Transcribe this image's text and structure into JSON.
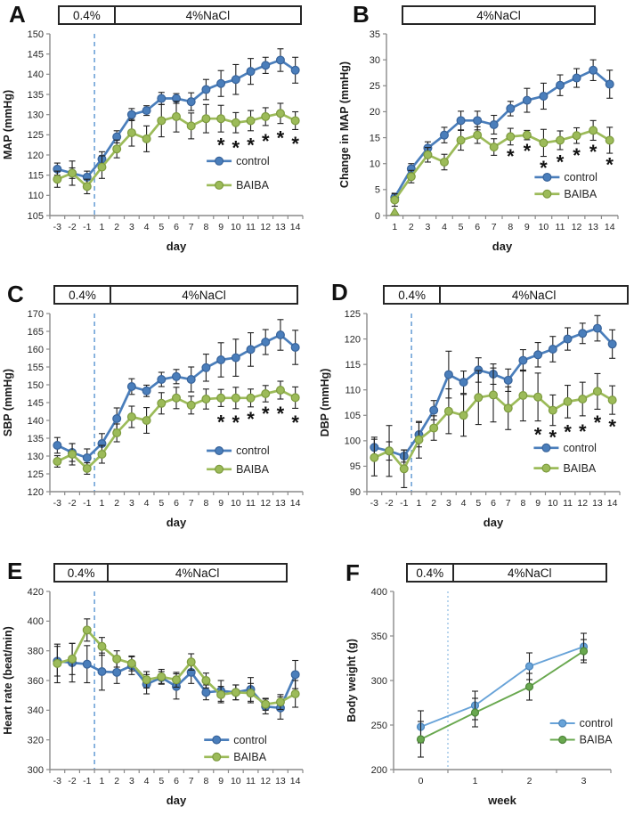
{
  "figure": {
    "groups": [
      "control",
      "BAIBA"
    ],
    "diet_phase_labels": {
      "baseline": "0.4%",
      "salt": "4%NaCl"
    }
  },
  "chart_data": [
    {
      "id": "A",
      "type": "line",
      "panel_label": "A",
      "header_boxes": [
        {
          "label": "0.4%"
        },
        {
          "label": "4%NaCl"
        }
      ],
      "xlabel": "day",
      "ylabel": "MAP (mmHg)",
      "ylim": [
        105,
        150
      ],
      "ytick_step": 5,
      "grid": false,
      "legend_position": "inside-lower-right",
      "categories": [
        "-3",
        "-2",
        "-1",
        "1",
        "2",
        "3",
        "4",
        "5",
        "6",
        "7",
        "8",
        "9",
        "10",
        "11",
        "12",
        "13",
        "14"
      ],
      "divider": {
        "boundary_index": 3,
        "color": "#6FA3D8",
        "dash": "5,4"
      },
      "series": [
        {
          "name": "control",
          "color": "#4A7EBB",
          "marker_stroke": "#38639A",
          "marker_r": 4.4,
          "line_width": 2.7,
          "values": [
            116.5,
            115.5,
            114.5,
            119,
            124.5,
            130,
            131,
            134,
            134,
            133.2,
            136.2,
            137.7,
            138.7,
            140.7,
            142.2,
            143.5,
            141
          ],
          "errors": [
            1.5,
            1.3,
            1.5,
            1.8,
            1.5,
            1.5,
            1.2,
            1.5,
            1.2,
            2.2,
            2.5,
            3.2,
            3.7,
            3.2,
            2.0,
            2.8,
            3.2
          ]
        },
        {
          "name": "BAIBA",
          "color": "#9CBB59",
          "marker_stroke": "#7D9B3E",
          "marker_r": 4.4,
          "line_width": 2.7,
          "values": [
            114,
            115.5,
            112.2,
            117,
            121.5,
            125.5,
            124,
            128.5,
            129.5,
            127.2,
            129,
            129,
            128,
            128.5,
            129.5,
            130.3,
            128.5
          ],
          "errors": [
            2.0,
            3.0,
            1.8,
            2.8,
            2.2,
            3.3,
            3.2,
            4.0,
            3.8,
            3.2,
            3.5,
            3.3,
            2.5,
            2.5,
            2.2,
            2.5,
            2.2
          ]
        }
      ],
      "asterisks": [
        {
          "day": "9",
          "y": 123.2
        },
        {
          "day": "10",
          "y": 122.5
        },
        {
          "day": "11",
          "y": 123.2
        },
        {
          "day": "12",
          "y": 124.2
        },
        {
          "day": "13",
          "y": 125.0
        },
        {
          "day": "14",
          "y": 123.5
        }
      ],
      "legend": {
        "fx": 0.62,
        "fy": 0.7,
        "dy": 0.133
      }
    },
    {
      "id": "B",
      "type": "line",
      "panel_label": "B",
      "header_boxes": [
        {
          "label": "4%NaCl"
        }
      ],
      "xlabel": "day",
      "ylabel": "Change in MAP (mmHg)",
      "ylim": [
        0,
        35
      ],
      "ytick_step": 5,
      "grid": false,
      "legend_position": "inside-lower-right",
      "categories": [
        "1",
        "2",
        "3",
        "4",
        "5",
        "6",
        "7",
        "8",
        "9",
        "10",
        "11",
        "12",
        "13",
        "14"
      ],
      "divider": null,
      "series": [
        {
          "name": "control",
          "color": "#4A7EBB",
          "marker_stroke": "#38639A",
          "marker_r": 4.4,
          "line_width": 2.7,
          "values": [
            3.5,
            9,
            13,
            15.5,
            18.3,
            18.3,
            17.5,
            20.6,
            22.2,
            23,
            25.1,
            26.5,
            28,
            25.3
          ],
          "errors": [
            0.8,
            1.0,
            1.2,
            1.5,
            1.8,
            1.8,
            1.8,
            1.4,
            2.3,
            2.5,
            2.0,
            1.8,
            2.0,
            2.7
          ]
        },
        {
          "name": "BAIBA",
          "color": "#9CBB59",
          "marker_stroke": "#7D9B3E",
          "marker_r": 4.4,
          "line_width": 2.7,
          "values": [
            3,
            7.5,
            11.7,
            10.3,
            14.5,
            15.5,
            13.2,
            15.2,
            15.5,
            14,
            14.5,
            15.4,
            16.4,
            14.5
          ],
          "errors": [
            1.2,
            1.2,
            1.4,
            1.5,
            1.9,
            1.6,
            1.6,
            1.6,
            0.9,
            2.6,
            1.8,
            1.5,
            1.9,
            2.5
          ]
        }
      ],
      "asterisks": [
        {
          "day": "8",
          "y": 12.0
        },
        {
          "day": "9",
          "y": 13.0
        },
        {
          "day": "10",
          "y": 9.8
        },
        {
          "day": "11",
          "y": 10.9
        },
        {
          "day": "12",
          "y": 12.2
        },
        {
          "day": "13",
          "y": 12.9
        },
        {
          "day": "14",
          "y": 10.4
        }
      ],
      "triangle": {
        "day": "1",
        "y": 0.7,
        "color": "#9CBB59",
        "stroke": "#7D9B3E"
      },
      "legend": {
        "fx": 0.64,
        "fy": 0.789,
        "dy": 0.092
      }
    },
    {
      "id": "C",
      "type": "line",
      "panel_label": "C",
      "header_boxes": [
        {
          "label": "0.4%"
        },
        {
          "label": "4%NaCl"
        }
      ],
      "xlabel": "day",
      "ylabel": "SBP (mmHg)",
      "ylim": [
        120,
        170
      ],
      "ytick_step": 5,
      "grid": false,
      "legend_position": "inside-lower-right",
      "categories": [
        "-3",
        "-2",
        "-1",
        "1",
        "2",
        "3",
        "4",
        "5",
        "6",
        "7",
        "8",
        "9",
        "10",
        "11",
        "12",
        "13",
        "14"
      ],
      "divider": {
        "boundary_index": 3,
        "color": "#6FA3D8",
        "dash": "5,4"
      },
      "series": [
        {
          "name": "control",
          "color": "#4A7EBB",
          "marker_stroke": "#38639A",
          "marker_r": 4.4,
          "line_width": 2.7,
          "values": [
            133,
            131,
            129.5,
            133.5,
            140.5,
            149.5,
            148.3,
            151.5,
            152.3,
            151.5,
            154.8,
            157,
            157.6,
            159.9,
            162,
            164,
            160.5
          ],
          "errors": [
            2.2,
            2.5,
            2.5,
            2.8,
            3.0,
            2.2,
            1.6,
            2.0,
            2.0,
            3.5,
            3.8,
            4.8,
            5.2,
            4.7,
            3.5,
            4.3,
            4.8
          ]
        },
        {
          "name": "BAIBA",
          "color": "#9CBB59",
          "marker_stroke": "#7D9B3E",
          "marker_r": 4.4,
          "line_width": 2.7,
          "values": [
            128.5,
            130.5,
            126.5,
            130.5,
            136.5,
            141,
            140,
            144.8,
            146.3,
            144.3,
            146,
            146.3,
            146.3,
            146.3,
            147.5,
            148.5,
            146.4
          ],
          "errors": [
            1.6,
            3.0,
            1.6,
            2.5,
            2.5,
            3.0,
            3.6,
            3.0,
            3.0,
            2.5,
            2.8,
            2.4,
            3.0,
            2.5,
            2.3,
            2.5,
            3.0
          ]
        }
      ],
      "asterisks": [
        {
          "day": "9",
          "y": 140.4
        },
        {
          "day": "10",
          "y": 140.2
        },
        {
          "day": "11",
          "y": 141.3
        },
        {
          "day": "12",
          "y": 142.7
        },
        {
          "day": "13",
          "y": 142.7
        },
        {
          "day": "14",
          "y": 140.2
        }
      ],
      "legend": {
        "fx": 0.62,
        "fy": 0.77,
        "dy": 0.104
      }
    },
    {
      "id": "D",
      "type": "line",
      "panel_label": "D",
      "header_boxes": [
        {
          "label": "0.4%"
        },
        {
          "label": "4%NaCl"
        }
      ],
      "xlabel": "day",
      "ylabel": "DBP (mmHg)",
      "ylim": [
        90,
        125
      ],
      "ytick_step": 5,
      "grid": false,
      "legend_position": "inside-lower-right",
      "categories": [
        "-3",
        "-2",
        "-1",
        "1",
        "2",
        "3",
        "4",
        "5",
        "6",
        "7",
        "8",
        "9",
        "10",
        "11",
        "12",
        "13",
        "14"
      ],
      "divider": {
        "boundary_index": 3,
        "color": "#6FA3D8",
        "dash": "5,4"
      },
      "series": [
        {
          "name": "control",
          "color": "#4A7EBB",
          "marker_stroke": "#38639A",
          "marker_r": 4.4,
          "line_width": 2.7,
          "values": [
            98.7,
            98,
            97,
            101.2,
            106,
            113,
            111.5,
            113.9,
            113.1,
            111.9,
            115.8,
            116.9,
            118,
            120,
            121.1,
            122.1,
            119
          ],
          "errors": [
            2.0,
            1.8,
            1.2,
            2.4,
            1.9,
            4.6,
            2.2,
            2.4,
            2.0,
            2.2,
            2.1,
            2.4,
            2.5,
            2.2,
            2.0,
            2.5,
            2.8
          ]
        },
        {
          "name": "BAIBA",
          "color": "#9CBB59",
          "marker_stroke": "#7D9B3E",
          "marker_r": 4.4,
          "line_width": 2.7,
          "values": [
            96.7,
            98,
            94.5,
            100.2,
            102.5,
            105.8,
            105,
            108.5,
            109,
            106.4,
            108.9,
            108.6,
            106,
            107.7,
            108.2,
            109.7,
            108
          ],
          "errors": [
            3.6,
            5.0,
            3.7,
            3.6,
            2.4,
            4.4,
            4.1,
            5.3,
            5.3,
            4.2,
            5.0,
            4.7,
            3.0,
            3.2,
            3.3,
            3.5,
            2.8
          ]
        }
      ],
      "asterisks": [
        {
          "day": "9",
          "y": 101.8
        },
        {
          "day": "10",
          "y": 101.3
        },
        {
          "day": "11",
          "y": 102.3
        },
        {
          "day": "12",
          "y": 102.4
        },
        {
          "day": "13",
          "y": 104.2
        },
        {
          "day": "14",
          "y": 103.4
        }
      ],
      "legend": {
        "fx": 0.66,
        "fy": 0.754,
        "dy": 0.114
      }
    },
    {
      "id": "E",
      "type": "line",
      "panel_label": "E",
      "header_boxes": [
        {
          "label": "0.4%"
        },
        {
          "label": "4%NaCl"
        }
      ],
      "xlabel": "day",
      "ylabel": "Heart rate (beat/min)",
      "ylim": [
        300,
        420
      ],
      "ytick_step": 20,
      "grid": false,
      "legend_position": "inside-lower-right",
      "categories": [
        "-3",
        "-2",
        "-1",
        "1",
        "2",
        "3",
        "4",
        "5",
        "6",
        "7",
        "8",
        "9",
        "10",
        "11",
        "12",
        "13",
        "14"
      ],
      "divider": {
        "boundary_index": 3,
        "color": "#6FA3D8",
        "dash": "5,4"
      },
      "series": [
        {
          "name": "control",
          "color": "#4A7EBB",
          "marker_stroke": "#38639A",
          "marker_r": 4.4,
          "line_width": 2.7,
          "values": [
            373,
            372,
            371,
            366,
            365.5,
            370,
            357.5,
            362,
            356,
            365.5,
            352,
            353,
            352,
            354,
            342.5,
            341.5,
            364
          ],
          "errors": [
            10,
            13,
            12.5,
            12.5,
            7.5,
            6,
            6.5,
            4,
            8.5,
            7.5,
            5,
            7,
            5,
            8,
            5,
            7.5,
            9.5
          ]
        },
        {
          "name": "BAIBA",
          "color": "#9CBB59",
          "marker_stroke": "#7D9B3E",
          "marker_r": 4.4,
          "line_width": 2.7,
          "values": [
            371.5,
            374.5,
            394,
            383,
            374.5,
            371.5,
            360.5,
            362.5,
            360.5,
            372.5,
            360,
            350.5,
            352,
            351.5,
            344,
            345.5,
            351
          ],
          "errors": [
            13,
            10.5,
            7.5,
            6,
            5.5,
            5,
            5.5,
            5,
            5,
            5.5,
            5,
            5.5,
            5,
            6.5,
            4,
            5,
            9
          ]
        }
      ],
      "asterisks": [],
      "legend": {
        "fx": 0.61,
        "fy": 0.833,
        "dy": 0.096
      }
    },
    {
      "id": "F",
      "type": "line",
      "panel_label": "F",
      "header_boxes": [
        {
          "label": "0.4%"
        },
        {
          "label": "4%NaCl"
        }
      ],
      "xlabel": "week",
      "ylabel": "Body weight (g)",
      "ylim": [
        200,
        400
      ],
      "ytick_step": 50,
      "grid": false,
      "legend_position": "inside-lower-right",
      "categories": [
        "0",
        "1",
        "2",
        "3"
      ],
      "divider": {
        "boundary_index": 1,
        "color": "#A9CCE9",
        "dash": "2,3"
      },
      "series": [
        {
          "name": "control",
          "color": "#68A3D8",
          "marker_stroke": "#4C85BB",
          "marker_r": 4.0,
          "line_width": 1.9,
          "values": [
            248,
            272,
            316,
            338
          ],
          "errors": [
            18,
            16,
            15,
            15
          ]
        },
        {
          "name": "BAIBA",
          "color": "#69A84F",
          "marker_stroke": "#4E853A",
          "marker_r": 4.0,
          "line_width": 1.9,
          "values": [
            234,
            264,
            293,
            333
          ],
          "errors": [
            20,
            16,
            15,
            13
          ]
        }
      ],
      "asterisks": [],
      "legend": {
        "fx": 0.72,
        "fy": 0.74,
        "dy": 0.0925
      }
    }
  ]
}
